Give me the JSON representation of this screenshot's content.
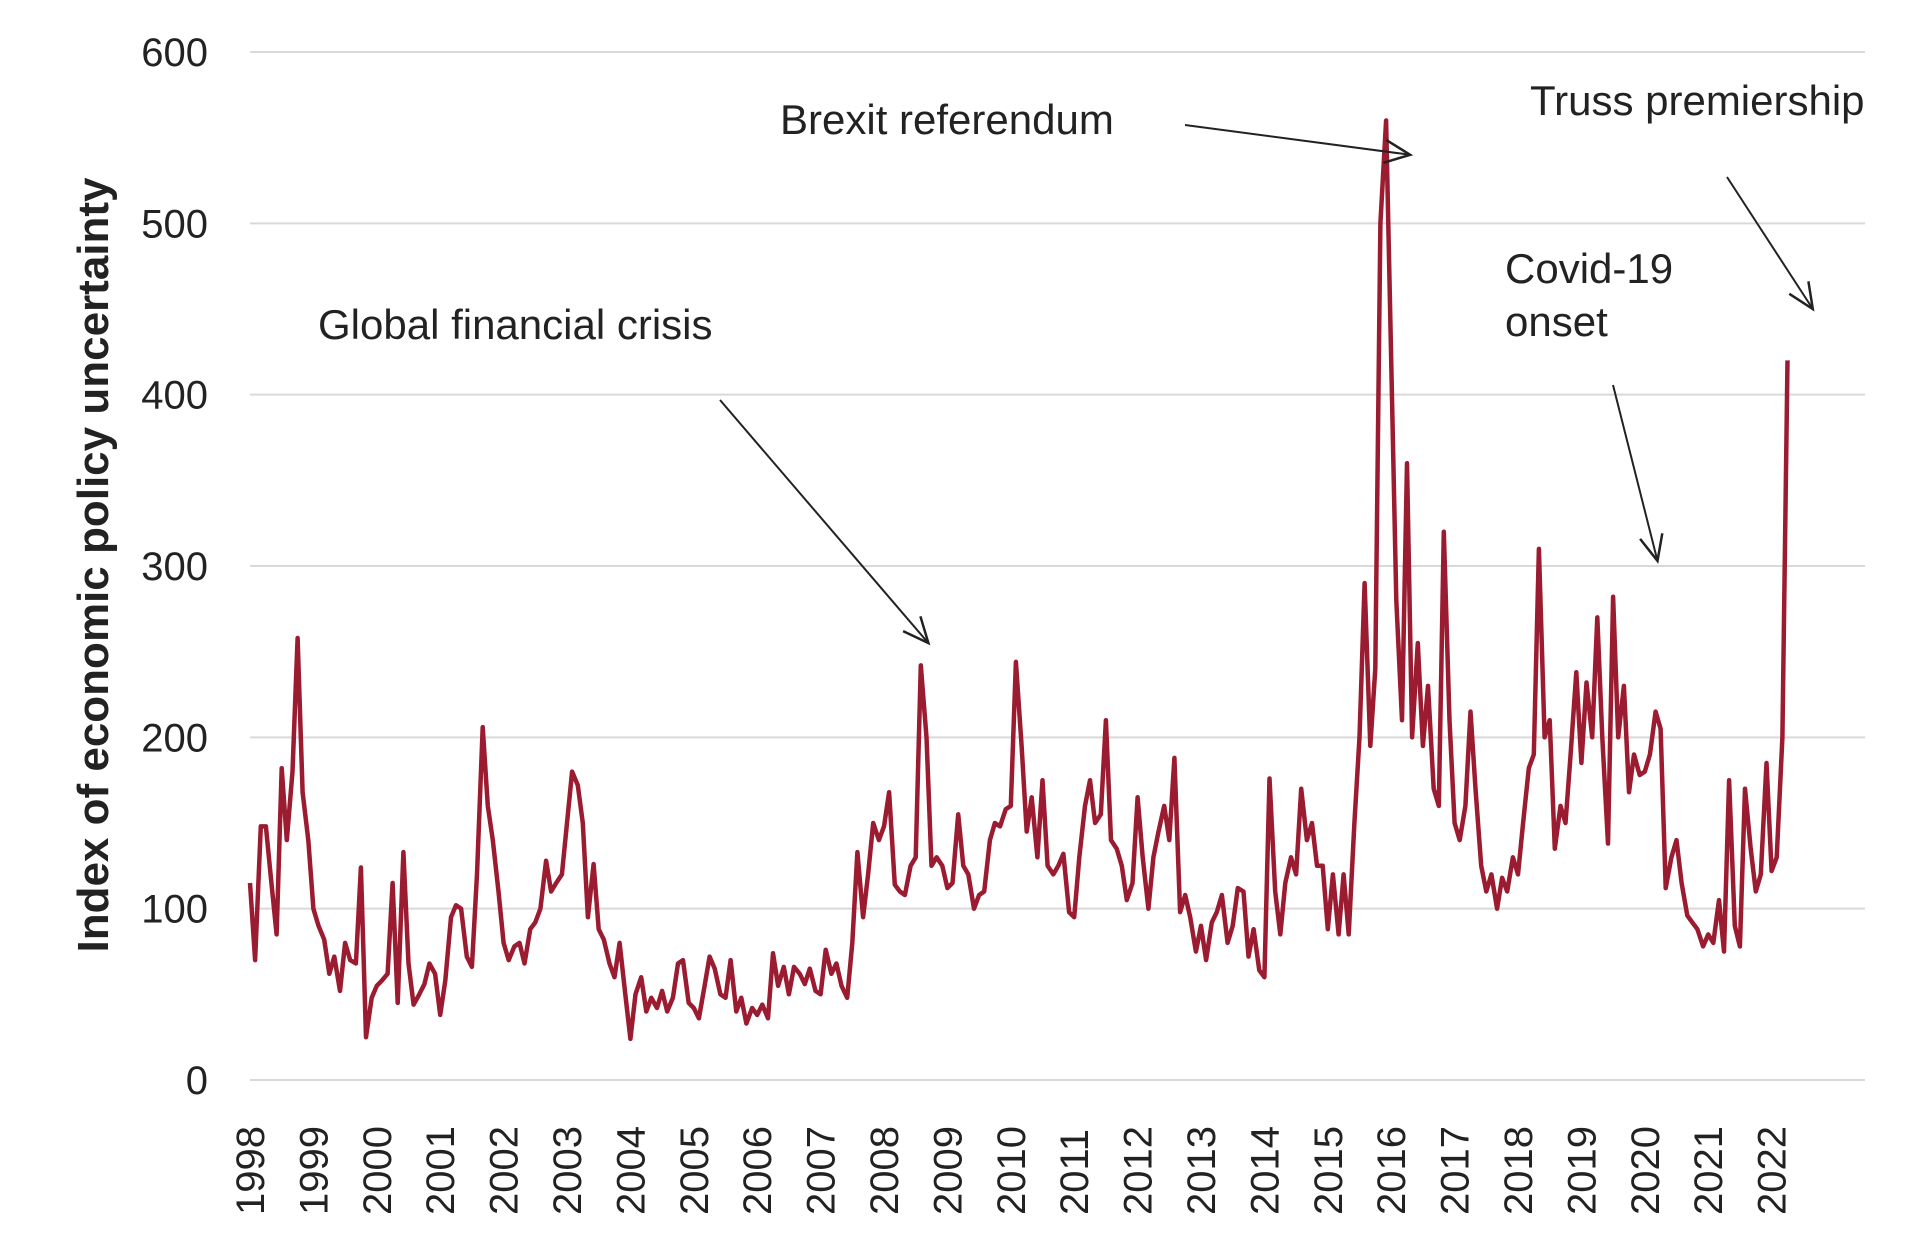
{
  "chart_data": {
    "type": "line",
    "ylabel": "Index of economic policy uncertainty",
    "xlabel": "",
    "ylim": [
      0,
      600
    ],
    "yticks": [
      0,
      100,
      200,
      300,
      400,
      500,
      600
    ],
    "xlim": [
      1998.0,
      2022.85
    ],
    "xticks": [
      "1998",
      "1999",
      "2000",
      "2001",
      "2002",
      "2003",
      "2004",
      "2005",
      "2006",
      "2007",
      "2008",
      "2009",
      "2010",
      "2011",
      "2012",
      "2013",
      "2014",
      "2015",
      "2016",
      "2017",
      "2018",
      "2019",
      "2020",
      "2021",
      "2022"
    ],
    "grid": true,
    "line_color": "#9b1b30",
    "annotations": [
      {
        "text": "Global financial crisis",
        "target": [
          2008.7,
          255
        ]
      },
      {
        "text": "Brexit referendum",
        "target": [
          2016.3,
          540
        ]
      },
      {
        "text": "Covid-19",
        "text2": "onset",
        "target": [
          2020.2,
          303
        ]
      },
      {
        "text": "Truss premiership",
        "target": [
          2022.65,
          450
        ]
      }
    ],
    "series": [
      {
        "points": [
          [
            1998.0,
            115
          ],
          [
            1998.08,
            70
          ],
          [
            1998.17,
            148
          ],
          [
            1998.25,
            148
          ],
          [
            1998.33,
            118
          ],
          [
            1998.42,
            85
          ],
          [
            1998.5,
            182
          ],
          [
            1998.58,
            140
          ],
          [
            1998.67,
            180
          ],
          [
            1998.75,
            258
          ],
          [
            1998.83,
            168
          ],
          [
            1998.92,
            140
          ],
          [
            1999.0,
            100
          ],
          [
            1999.08,
            90
          ],
          [
            1999.17,
            82
          ],
          [
            1999.25,
            62
          ],
          [
            1999.33,
            72
          ],
          [
            1999.42,
            52
          ],
          [
            1999.5,
            80
          ],
          [
            1999.58,
            70
          ],
          [
            1999.67,
            68
          ],
          [
            1999.75,
            124
          ],
          [
            1999.83,
            25
          ],
          [
            1999.92,
            48
          ],
          [
            2000.0,
            55
          ],
          [
            2000.08,
            58
          ],
          [
            2000.17,
            62
          ],
          [
            2000.25,
            115
          ],
          [
            2000.33,
            45
          ],
          [
            2000.42,
            133
          ],
          [
            2000.5,
            68
          ],
          [
            2000.58,
            44
          ],
          [
            2000.67,
            50
          ],
          [
            2000.75,
            56
          ],
          [
            2000.83,
            68
          ],
          [
            2000.92,
            62
          ],
          [
            2001.0,
            38
          ],
          [
            2001.08,
            58
          ],
          [
            2001.17,
            95
          ],
          [
            2001.25,
            102
          ],
          [
            2001.33,
            100
          ],
          [
            2001.42,
            72
          ],
          [
            2001.5,
            66
          ],
          [
            2001.58,
            120
          ],
          [
            2001.67,
            206
          ],
          [
            2001.75,
            160
          ],
          [
            2001.83,
            140
          ],
          [
            2001.92,
            110
          ],
          [
            2002.0,
            80
          ],
          [
            2002.08,
            70
          ],
          [
            2002.17,
            78
          ],
          [
            2002.25,
            80
          ],
          [
            2002.33,
            68
          ],
          [
            2002.42,
            88
          ],
          [
            2002.5,
            92
          ],
          [
            2002.58,
            100
          ],
          [
            2002.67,
            128
          ],
          [
            2002.75,
            110
          ],
          [
            2002.83,
            115
          ],
          [
            2002.92,
            120
          ],
          [
            2003.0,
            150
          ],
          [
            2003.08,
            180
          ],
          [
            2003.17,
            172
          ],
          [
            2003.25,
            150
          ],
          [
            2003.33,
            95
          ],
          [
            2003.42,
            126
          ],
          [
            2003.5,
            88
          ],
          [
            2003.58,
            82
          ],
          [
            2003.67,
            68
          ],
          [
            2003.75,
            60
          ],
          [
            2003.83,
            80
          ],
          [
            2003.92,
            50
          ],
          [
            2004.0,
            24
          ],
          [
            2004.08,
            50
          ],
          [
            2004.17,
            60
          ],
          [
            2004.25,
            40
          ],
          [
            2004.33,
            48
          ],
          [
            2004.42,
            42
          ],
          [
            2004.5,
            52
          ],
          [
            2004.58,
            40
          ],
          [
            2004.67,
            48
          ],
          [
            2004.75,
            68
          ],
          [
            2004.83,
            70
          ],
          [
            2004.92,
            45
          ],
          [
            2005.0,
            42
          ],
          [
            2005.08,
            36
          ],
          [
            2005.17,
            55
          ],
          [
            2005.25,
            72
          ],
          [
            2005.33,
            65
          ],
          [
            2005.42,
            50
          ],
          [
            2005.5,
            48
          ],
          [
            2005.58,
            70
          ],
          [
            2005.67,
            40
          ],
          [
            2005.75,
            48
          ],
          [
            2005.83,
            33
          ],
          [
            2005.92,
            42
          ],
          [
            2006.0,
            38
          ],
          [
            2006.08,
            44
          ],
          [
            2006.17,
            36
          ],
          [
            2006.25,
            74
          ],
          [
            2006.33,
            55
          ],
          [
            2006.42,
            66
          ],
          [
            2006.5,
            50
          ],
          [
            2006.58,
            66
          ],
          [
            2006.67,
            62
          ],
          [
            2006.75,
            56
          ],
          [
            2006.83,
            65
          ],
          [
            2006.92,
            52
          ],
          [
            2007.0,
            50
          ],
          [
            2007.08,
            76
          ],
          [
            2007.17,
            62
          ],
          [
            2007.25,
            68
          ],
          [
            2007.33,
            55
          ],
          [
            2007.42,
            48
          ],
          [
            2007.5,
            80
          ],
          [
            2007.58,
            133
          ],
          [
            2007.67,
            95
          ],
          [
            2007.75,
            120
          ],
          [
            2007.83,
            150
          ],
          [
            2007.92,
            140
          ],
          [
            2008.0,
            148
          ],
          [
            2008.08,
            168
          ],
          [
            2008.17,
            114
          ],
          [
            2008.25,
            110
          ],
          [
            2008.33,
            108
          ],
          [
            2008.42,
            125
          ],
          [
            2008.5,
            130
          ],
          [
            2008.58,
            242
          ],
          [
            2008.67,
            200
          ],
          [
            2008.75,
            125
          ],
          [
            2008.83,
            130
          ],
          [
            2008.92,
            125
          ],
          [
            2009.0,
            112
          ],
          [
            2009.08,
            115
          ],
          [
            2009.17,
            155
          ],
          [
            2009.25,
            125
          ],
          [
            2009.33,
            120
          ],
          [
            2009.42,
            100
          ],
          [
            2009.5,
            108
          ],
          [
            2009.58,
            110
          ],
          [
            2009.67,
            140
          ],
          [
            2009.75,
            150
          ],
          [
            2009.83,
            148
          ],
          [
            2009.92,
            158
          ],
          [
            2010.0,
            160
          ],
          [
            2010.08,
            244
          ],
          [
            2010.17,
            195
          ],
          [
            2010.25,
            145
          ],
          [
            2010.33,
            165
          ],
          [
            2010.42,
            130
          ],
          [
            2010.5,
            175
          ],
          [
            2010.58,
            125
          ],
          [
            2010.67,
            120
          ],
          [
            2010.75,
            125
          ],
          [
            2010.83,
            132
          ],
          [
            2010.92,
            98
          ],
          [
            2011.0,
            95
          ],
          [
            2011.08,
            130
          ],
          [
            2011.17,
            160
          ],
          [
            2011.25,
            175
          ],
          [
            2011.33,
            150
          ],
          [
            2011.42,
            155
          ],
          [
            2011.5,
            210
          ],
          [
            2011.58,
            140
          ],
          [
            2011.67,
            135
          ],
          [
            2011.75,
            125
          ],
          [
            2011.83,
            105
          ],
          [
            2011.92,
            115
          ],
          [
            2012.0,
            165
          ],
          [
            2012.08,
            130
          ],
          [
            2012.17,
            100
          ],
          [
            2012.25,
            130
          ],
          [
            2012.33,
            145
          ],
          [
            2012.42,
            160
          ],
          [
            2012.5,
            140
          ],
          [
            2012.58,
            188
          ],
          [
            2012.67,
            98
          ],
          [
            2012.75,
            108
          ],
          [
            2012.83,
            95
          ],
          [
            2012.92,
            75
          ],
          [
            2013.0,
            90
          ],
          [
            2013.08,
            70
          ],
          [
            2013.17,
            92
          ],
          [
            2013.25,
            98
          ],
          [
            2013.33,
            108
          ],
          [
            2013.42,
            80
          ],
          [
            2013.5,
            90
          ],
          [
            2013.58,
            112
          ],
          [
            2013.67,
            110
          ],
          [
            2013.75,
            72
          ],
          [
            2013.83,
            88
          ],
          [
            2013.92,
            64
          ],
          [
            2014.0,
            60
          ],
          [
            2014.08,
            176
          ],
          [
            2014.17,
            110
          ],
          [
            2014.25,
            85
          ],
          [
            2014.33,
            115
          ],
          [
            2014.42,
            130
          ],
          [
            2014.5,
            120
          ],
          [
            2014.58,
            170
          ],
          [
            2014.67,
            140
          ],
          [
            2014.75,
            150
          ],
          [
            2014.83,
            125
          ],
          [
            2014.92,
            125
          ],
          [
            2015.0,
            88
          ],
          [
            2015.08,
            120
          ],
          [
            2015.17,
            85
          ],
          [
            2015.25,
            120
          ],
          [
            2015.33,
            85
          ],
          [
            2015.42,
            150
          ],
          [
            2015.5,
            200
          ],
          [
            2015.58,
            290
          ],
          [
            2015.67,
            195
          ],
          [
            2015.75,
            240
          ],
          [
            2015.83,
            500
          ],
          [
            2015.92,
            560
          ],
          [
            2016.0,
            420
          ],
          [
            2016.08,
            280
          ],
          [
            2016.17,
            210
          ],
          [
            2016.25,
            360
          ],
          [
            2016.33,
            200
          ],
          [
            2016.42,
            255
          ],
          [
            2016.5,
            195
          ],
          [
            2016.58,
            230
          ],
          [
            2016.67,
            170
          ],
          [
            2016.75,
            160
          ],
          [
            2016.83,
            320
          ],
          [
            2016.92,
            210
          ],
          [
            2017.0,
            150
          ],
          [
            2017.08,
            140
          ],
          [
            2017.17,
            160
          ],
          [
            2017.25,
            215
          ],
          [
            2017.33,
            170
          ],
          [
            2017.42,
            125
          ],
          [
            2017.5,
            110
          ],
          [
            2017.58,
            120
          ],
          [
            2017.67,
            100
          ],
          [
            2017.75,
            118
          ],
          [
            2017.83,
            110
          ],
          [
            2017.92,
            130
          ],
          [
            2018.0,
            120
          ],
          [
            2018.08,
            150
          ],
          [
            2018.17,
            182
          ],
          [
            2018.25,
            190
          ],
          [
            2018.33,
            310
          ],
          [
            2018.42,
            200
          ],
          [
            2018.5,
            210
          ],
          [
            2018.58,
            135
          ],
          [
            2018.67,
            160
          ],
          [
            2018.75,
            150
          ],
          [
            2018.83,
            190
          ],
          [
            2018.92,
            238
          ],
          [
            2019.0,
            185
          ],
          [
            2019.08,
            232
          ],
          [
            2019.17,
            200
          ],
          [
            2019.25,
            270
          ],
          [
            2019.33,
            200
          ],
          [
            2019.42,
            138
          ],
          [
            2019.5,
            282
          ],
          [
            2019.58,
            200
          ],
          [
            2019.67,
            230
          ],
          [
            2019.75,
            168
          ],
          [
            2019.83,
            190
          ],
          [
            2019.92,
            178
          ],
          [
            2020.0,
            180
          ],
          [
            2020.08,
            190
          ],
          [
            2020.17,
            215
          ],
          [
            2020.25,
            205
          ],
          [
            2020.33,
            112
          ],
          [
            2020.42,
            130
          ],
          [
            2020.5,
            140
          ],
          [
            2020.58,
            115
          ],
          [
            2020.67,
            96
          ],
          [
            2020.75,
            92
          ],
          [
            2020.83,
            88
          ],
          [
            2020.92,
            78
          ],
          [
            2021.0,
            85
          ],
          [
            2021.08,
            80
          ],
          [
            2021.17,
            105
          ],
          [
            2021.25,
            75
          ],
          [
            2021.33,
            175
          ],
          [
            2021.42,
            90
          ],
          [
            2021.5,
            78
          ],
          [
            2021.58,
            170
          ],
          [
            2021.67,
            135
          ],
          [
            2021.75,
            110
          ],
          [
            2021.83,
            120
          ],
          [
            2021.92,
            185
          ],
          [
            2022.0,
            122
          ],
          [
            2022.08,
            130
          ],
          [
            2022.17,
            200
          ],
          [
            2022.25,
            420
          ]
        ]
      }
    ]
  }
}
